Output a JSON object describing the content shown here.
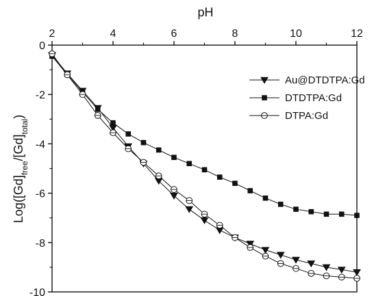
{
  "chart_data": {
    "type": "line",
    "xlabel": "pH",
    "ylabel": {
      "prefix": "Log([Gd]",
      "sub1": "free",
      "middle": "/[Gd]",
      "sub2": "total",
      "suffix": ")"
    },
    "xlim": [
      2,
      12
    ],
    "ylim": [
      -10,
      0
    ],
    "x_ticks": [
      2,
      4,
      6,
      8,
      10,
      12
    ],
    "y_ticks": [
      0,
      -2,
      -4,
      -6,
      -8,
      -10
    ],
    "x_tick_labels": [
      "2",
      "4",
      "6",
      "8",
      "10",
      "12"
    ],
    "y_tick_labels": [
      "0",
      "-2",
      "-4",
      "-6",
      "-8",
      "-10"
    ],
    "x_axis_position": "top",
    "grid": false,
    "legend_position": "top-right",
    "series": [
      {
        "name": "Au@DTDTPA:Gd",
        "marker": "triangle-down",
        "color": "#111111",
        "x": [
          2.0,
          2.5,
          3.0,
          3.5,
          4.0,
          4.5,
          5.0,
          5.5,
          6.0,
          6.5,
          7.0,
          7.5,
          8.0,
          8.5,
          9.0,
          9.5,
          10.0,
          10.5,
          11.0,
          11.5,
          12.0
        ],
        "y": [
          -0.4,
          -1.15,
          -1.85,
          -2.55,
          -3.35,
          -4.1,
          -4.8,
          -5.5,
          -6.1,
          -6.65,
          -7.1,
          -7.5,
          -7.8,
          -8.05,
          -8.3,
          -8.5,
          -8.7,
          -8.85,
          -9.0,
          -9.1,
          -9.2
        ]
      },
      {
        "name": "DTDTPA:Gd",
        "marker": "square",
        "color": "#111111",
        "x": [
          2.0,
          2.5,
          3.0,
          3.5,
          4.0,
          4.5,
          5.0,
          5.5,
          6.0,
          6.5,
          7.0,
          7.5,
          8.0,
          8.5,
          9.0,
          9.5,
          10.0,
          10.5,
          11.0,
          11.5,
          12.0
        ],
        "y": [
          -0.45,
          -1.2,
          -1.9,
          -2.6,
          -3.15,
          -3.6,
          -3.95,
          -4.25,
          -4.55,
          -4.8,
          -5.05,
          -5.35,
          -5.6,
          -5.9,
          -6.2,
          -6.45,
          -6.65,
          -6.75,
          -6.85,
          -6.85,
          -6.9
        ]
      },
      {
        "name": "DTPA:Gd",
        "marker": "circle-open",
        "color": "#111111",
        "x": [
          2.0,
          2.5,
          3.0,
          3.5,
          4.0,
          4.5,
          5.0,
          5.5,
          6.0,
          6.5,
          7.0,
          7.5,
          8.0,
          8.5,
          9.0,
          9.5,
          10.0,
          10.5,
          11.0,
          11.5,
          12.0
        ],
        "y": [
          -0.35,
          -1.2,
          -2.0,
          -2.85,
          -3.55,
          -4.2,
          -4.75,
          -5.3,
          -5.85,
          -6.3,
          -6.85,
          -7.3,
          -7.8,
          -8.2,
          -8.55,
          -8.85,
          -9.05,
          -9.25,
          -9.35,
          -9.4,
          -9.45
        ]
      }
    ]
  }
}
